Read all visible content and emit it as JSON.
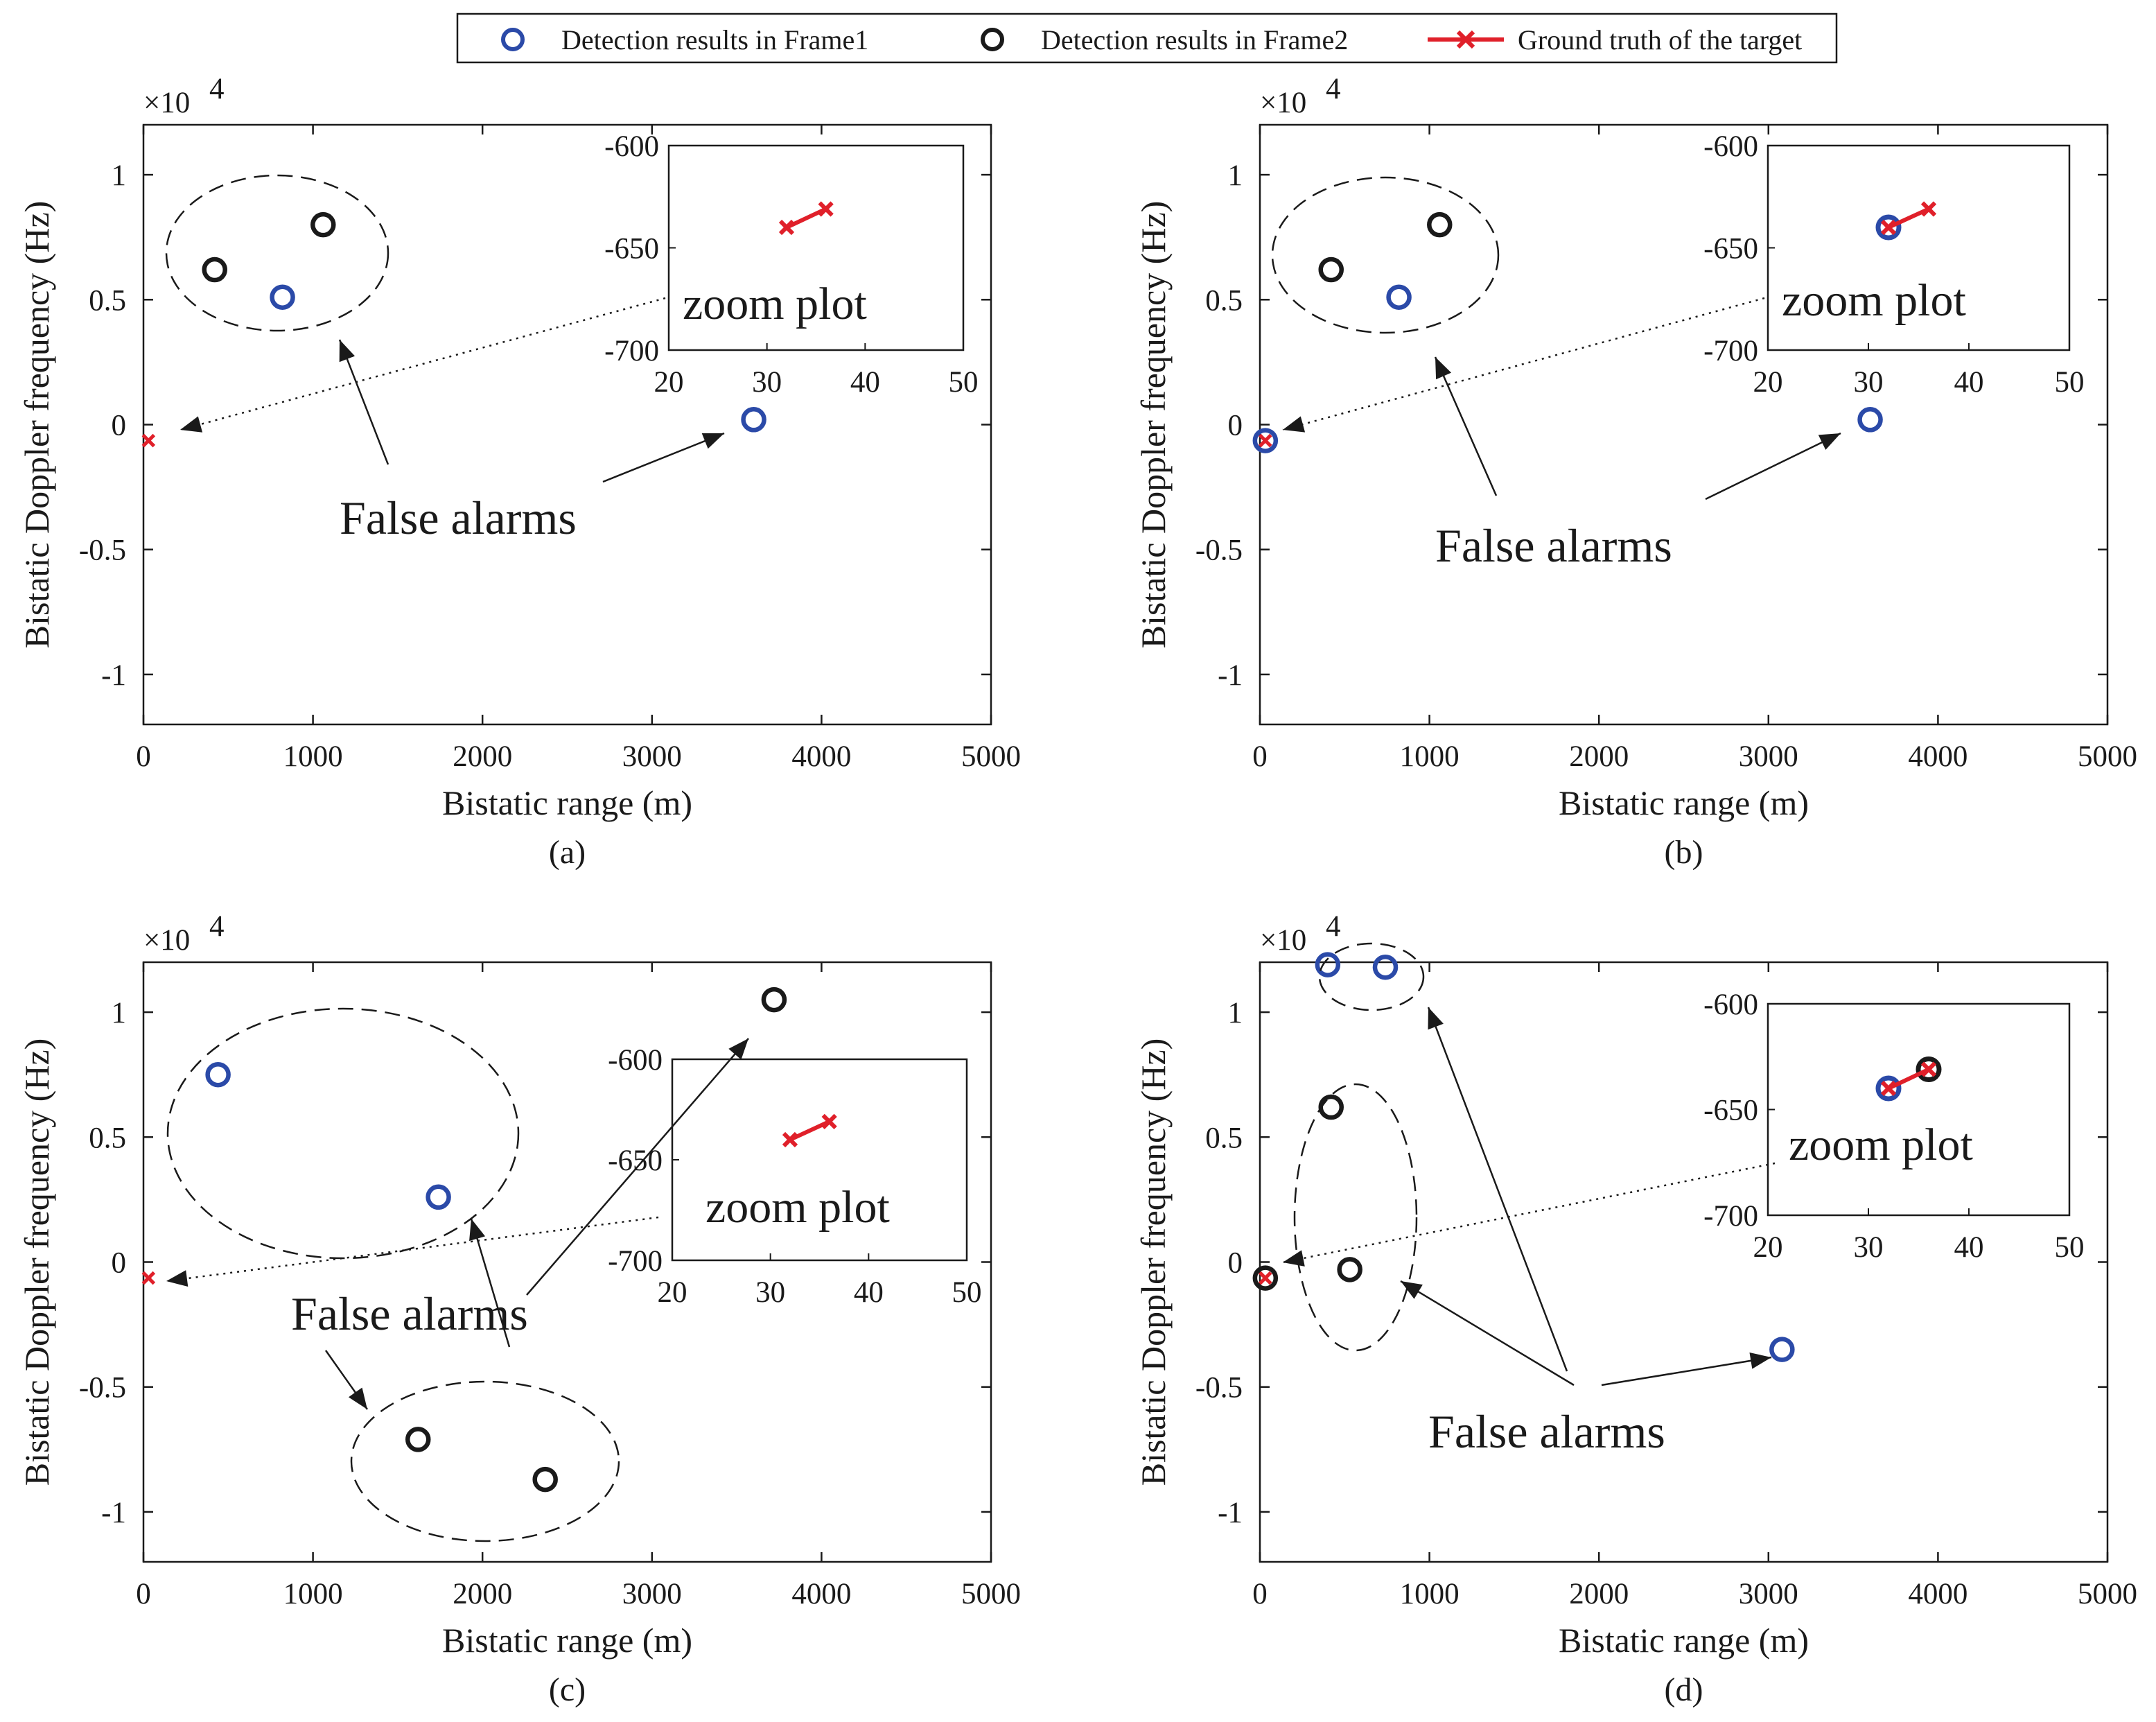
{
  "legend": {
    "items": [
      {
        "label": "Detection results in Frame1",
        "marker": "circle",
        "color": "#2b4aa8"
      },
      {
        "label": "Detection results in Frame2",
        "marker": "circle",
        "color": "#1a1a1a"
      },
      {
        "label": "Ground truth of the target",
        "marker": "line-x",
        "color": "#e0202a"
      }
    ]
  },
  "chart_data": [
    {
      "type": "scatter",
      "caption": "(a)",
      "xlabel": "Bistatic range (m)",
      "ylabel": "Bistatic Doppler frequency (Hz)",
      "y_multiplier": "×10",
      "y_multiplier_exp": "4",
      "xlim": [
        0,
        5000
      ],
      "ylim": [
        -1.2,
        1.2
      ],
      "xticks": [
        "0",
        "1000",
        "2000",
        "3000",
        "4000",
        "5000"
      ],
      "yticks": [
        "1",
        "0.5",
        "0",
        "-0.5",
        "-1"
      ],
      "frame1": [
        {
          "x": 820,
          "y": 0.51
        },
        {
          "x": 3600,
          "y": 0.02
        }
      ],
      "frame2": [
        {
          "x": 420,
          "y": 0.62
        },
        {
          "x": 1060,
          "y": 0.8
        }
      ],
      "truth": [
        {
          "x": 30,
          "y": -0.064
        }
      ],
      "annotation": "False alarms",
      "inset": {
        "label": "zoom plot",
        "xlim": [
          20,
          50
        ],
        "ylim": [
          -700,
          -600
        ],
        "xticks": [
          "20",
          "30",
          "40",
          "50"
        ],
        "yticks": [
          "-600",
          "-650",
          "-700"
        ],
        "frame1": [],
        "frame2": [],
        "truth_line": [
          {
            "x": 32,
            "y": -640
          },
          {
            "x": 36,
            "y": -631
          }
        ]
      }
    },
    {
      "type": "scatter",
      "caption": "(b)",
      "xlabel": "Bistatic range (m)",
      "ylabel": "Bistatic Doppler frequency (Hz)",
      "y_multiplier": "×10",
      "y_multiplier_exp": "4",
      "xlim": [
        0,
        5000
      ],
      "ylim": [
        -1.2,
        1.2
      ],
      "xticks": [
        "0",
        "1000",
        "2000",
        "3000",
        "4000",
        "5000"
      ],
      "yticks": [
        "1",
        "0.5",
        "0",
        "-0.5",
        "-1"
      ],
      "frame1": [
        {
          "x": 820,
          "y": 0.51
        },
        {
          "x": 3600,
          "y": 0.02
        },
        {
          "x": 32,
          "y": -0.064
        }
      ],
      "frame2": [
        {
          "x": 420,
          "y": 0.62
        },
        {
          "x": 1060,
          "y": 0.8
        }
      ],
      "truth": [
        {
          "x": 32,
          "y": -0.064
        }
      ],
      "annotation": "False alarms",
      "inset": {
        "label": "zoom plot",
        "xlim": [
          20,
          50
        ],
        "ylim": [
          -700,
          -600
        ],
        "xticks": [
          "20",
          "30",
          "40",
          "50"
        ],
        "yticks": [
          "-600",
          "-650",
          "-700"
        ],
        "frame1": [
          {
            "x": 32,
            "y": -640
          }
        ],
        "frame2": [],
        "truth_line": [
          {
            "x": 32,
            "y": -640
          },
          {
            "x": 36,
            "y": -631
          }
        ]
      }
    },
    {
      "type": "scatter",
      "caption": "(c)",
      "xlabel": "Bistatic range (m)",
      "ylabel": "Bistatic Doppler frequency (Hz)",
      "y_multiplier": "×10",
      "y_multiplier_exp": "4",
      "xlim": [
        0,
        5000
      ],
      "ylim": [
        -1.2,
        1.2
      ],
      "xticks": [
        "0",
        "1000",
        "2000",
        "3000",
        "4000",
        "5000"
      ],
      "yticks": [
        "1",
        "0.5",
        "0",
        "-0.5",
        "-1"
      ],
      "frame1": [
        {
          "x": 440,
          "y": 0.75
        },
        {
          "x": 1740,
          "y": 0.26
        }
      ],
      "frame2": [
        {
          "x": 3720,
          "y": 1.05
        },
        {
          "x": 1620,
          "y": -0.71
        },
        {
          "x": 2370,
          "y": -0.87
        }
      ],
      "truth": [
        {
          "x": 30,
          "y": -0.064
        }
      ],
      "annotation": "False alarms",
      "inset": {
        "label": "zoom plot",
        "xlim": [
          20,
          50
        ],
        "ylim": [
          -700,
          -600
        ],
        "xticks": [
          "20",
          "30",
          "40",
          "50"
        ],
        "yticks": [
          "-600",
          "-650",
          "-700"
        ],
        "frame1": [],
        "frame2": [],
        "truth_line": [
          {
            "x": 32,
            "y": -640
          },
          {
            "x": 36,
            "y": -631
          }
        ]
      }
    },
    {
      "type": "scatter",
      "caption": "(d)",
      "xlabel": "Bistatic range (m)",
      "ylabel": "Bistatic Doppler frequency (Hz)",
      "y_multiplier": "×10",
      "y_multiplier_exp": "4",
      "xlim": [
        0,
        5000
      ],
      "ylim": [
        -1.2,
        1.2
      ],
      "xticks": [
        "0",
        "1000",
        "2000",
        "3000",
        "4000",
        "5000"
      ],
      "yticks": [
        "1",
        "0.5",
        "0",
        "-0.5",
        "-1"
      ],
      "frame1": [
        {
          "x": 400,
          "y": 1.19
        },
        {
          "x": 740,
          "y": 1.18
        },
        {
          "x": 3080,
          "y": -0.35
        }
      ],
      "frame2": [
        {
          "x": 420,
          "y": 0.62
        },
        {
          "x": 530,
          "y": -0.03
        },
        {
          "x": 32,
          "y": -0.064
        }
      ],
      "truth": [
        {
          "x": 32,
          "y": -0.064
        }
      ],
      "annotation": "False alarms",
      "inset": {
        "label": "zoom plot",
        "xlim": [
          20,
          50
        ],
        "ylim": [
          -700,
          -600
        ],
        "xticks": [
          "20",
          "30",
          "40",
          "50"
        ],
        "yticks": [
          "-600",
          "-650",
          "-700"
        ],
        "frame1": [
          {
            "x": 32,
            "y": -640
          }
        ],
        "frame2": [
          {
            "x": 36,
            "y": -631
          }
        ],
        "truth_line": [
          {
            "x": 32,
            "y": -640
          },
          {
            "x": 36,
            "y": -631
          }
        ]
      }
    }
  ]
}
